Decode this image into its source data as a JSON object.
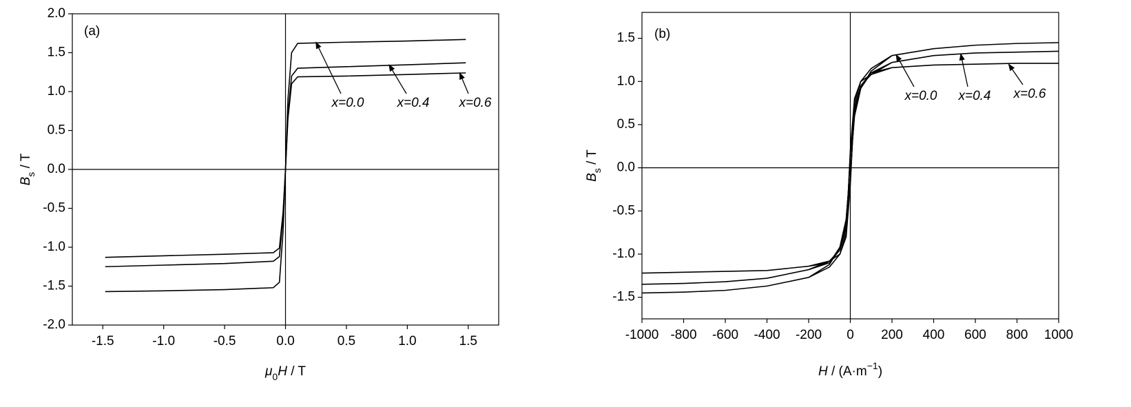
{
  "chart_data": [
    {
      "type": "line",
      "panel_label": "(a)",
      "x_label": [
        "μ",
        "0",
        "H",
        " / T"
      ],
      "y_label": [
        "B",
        "s",
        " / T"
      ],
      "xlim": [
        -1.75,
        1.75
      ],
      "xticks": [
        -1.5,
        {
          "value": -1,
          "label": "-1.0"
        },
        -0.5,
        {
          "value": 0,
          "label": "0.0"
        },
        0.5,
        {
          "value": 1,
          "label": "1.0"
        },
        1.5
      ],
      "ylim": [
        -2,
        2
      ],
      "yticks": [
        {
          "value": -2,
          "label": "-2.0"
        },
        -1.5,
        {
          "value": -1,
          "label": "-1.0"
        },
        -0.5,
        {
          "value": 0,
          "label": "0.0"
        },
        0.5,
        {
          "value": 1,
          "label": "1.0"
        },
        1.5,
        {
          "value": 2,
          "label": "2.0"
        }
      ],
      "x": [
        -1.48,
        -1.0,
        -0.5,
        -0.1,
        -0.05,
        -0.02,
        0,
        0.02,
        0.05,
        0.1,
        0.5,
        1.0,
        1.48
      ],
      "series": [
        {
          "name": "x=0.0",
          "color": "#000000",
          "values": [
            -1.57,
            -1.56,
            -1.545,
            -1.52,
            -1.45,
            -0.8,
            0,
            0.9,
            1.5,
            1.62,
            1.635,
            1.65,
            1.67
          ]
        },
        {
          "name": "x=0.4",
          "color": "#000000",
          "values": [
            -1.25,
            -1.23,
            -1.21,
            -1.18,
            -1.12,
            -0.6,
            0,
            0.7,
            1.2,
            1.3,
            1.32,
            1.345,
            1.37
          ]
        },
        {
          "name": "x=0.6",
          "color": "#000000",
          "values": [
            -1.13,
            -1.11,
            -1.09,
            -1.07,
            -1.01,
            -0.55,
            0,
            0.65,
            1.1,
            1.19,
            1.2,
            1.22,
            1.24
          ]
        }
      ]
    },
    {
      "type": "line",
      "panel_label": "(b)",
      "x_label": [
        "H",
        " / (A·m",
        "−1",
        ")"
      ],
      "y_label": [
        "B",
        "s",
        " / T"
      ],
      "xlim": [
        -1000,
        1000
      ],
      "xticks": [
        -1000,
        -800,
        -600,
        -400,
        -200,
        0,
        200,
        400,
        600,
        800,
        1000
      ],
      "ylim": [
        -1.75,
        1.8
      ],
      "yticks": [
        -1.5,
        {
          "value": -1,
          "label": "-1.0"
        },
        -0.5,
        {
          "value": 0,
          "label": "0.0"
        },
        0.5,
        {
          "value": 1,
          "label": "1.0"
        },
        1.5
      ],
      "x": [
        -1000,
        -800,
        -600,
        -400,
        -200,
        -100,
        -50,
        -20,
        0,
        10,
        20,
        50,
        100,
        200,
        400,
        600,
        800,
        1000,
        1000,
        800,
        600,
        400,
        200,
        100,
        50,
        20,
        0,
        -10,
        -20,
        -50,
        -100,
        -200,
        -400,
        -600,
        -800,
        -1000
      ],
      "series": [
        {
          "name": "x=0.0",
          "color": "#000000",
          "values": [
            -1.45,
            -1.44,
            -1.42,
            -1.37,
            -1.27,
            -1.15,
            -1.0,
            -0.75,
            -0.15,
            0.3,
            0.6,
            0.92,
            1.12,
            1.3,
            1.38,
            1.42,
            1.44,
            1.45,
            1.45,
            1.44,
            1.42,
            1.38,
            1.3,
            1.15,
            1.0,
            0.75,
            0.15,
            -0.3,
            -0.6,
            -0.92,
            -1.12,
            -1.27,
            -1.37,
            -1.42,
            -1.44,
            -1.45
          ]
        },
        {
          "name": "x=0.4",
          "color": "#000000",
          "values": [
            -1.35,
            -1.34,
            -1.32,
            -1.28,
            -1.18,
            -1.08,
            -0.95,
            -0.7,
            -0.15,
            0.3,
            0.6,
            0.92,
            1.1,
            1.22,
            1.3,
            1.33,
            1.34,
            1.35,
            1.35,
            1.34,
            1.33,
            1.3,
            1.22,
            1.08,
            0.95,
            0.7,
            0.15,
            -0.3,
            -0.6,
            -0.92,
            -1.1,
            -1.18,
            -1.28,
            -1.32,
            -1.34,
            -1.35
          ]
        },
        {
          "name": "x=0.6",
          "color": "#000000",
          "values": [
            -1.22,
            -1.21,
            -1.2,
            -1.19,
            -1.14,
            -1.08,
            -1.0,
            -0.8,
            -0.2,
            0.3,
            0.65,
            0.95,
            1.1,
            1.16,
            1.19,
            1.2,
            1.21,
            1.21,
            1.21,
            1.21,
            1.2,
            1.19,
            1.16,
            1.08,
            1.0,
            0.8,
            0.2,
            -0.3,
            -0.65,
            -0.95,
            -1.1,
            -1.14,
            -1.19,
            -1.2,
            -1.21,
            -1.22
          ]
        }
      ]
    }
  ]
}
